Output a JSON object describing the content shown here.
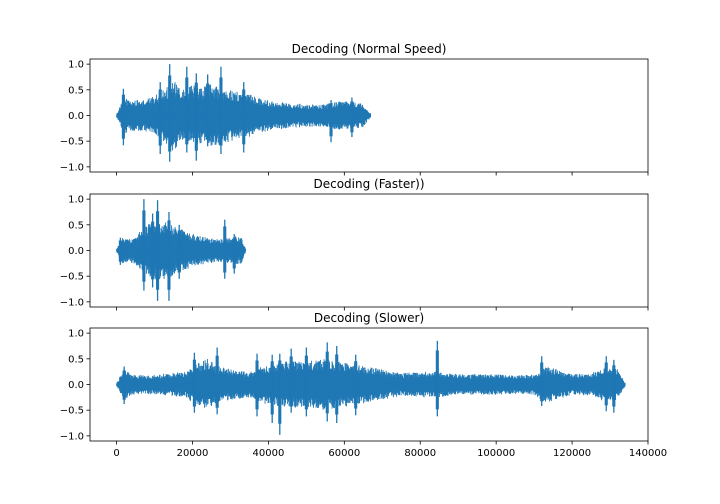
{
  "colors": {
    "series": "#1f77b4",
    "axes": "#000000",
    "background": "#ffffff"
  },
  "chart_data": [
    {
      "type": "line",
      "title": "Decoding (Normal Speed)",
      "xlabel": "",
      "ylabel": "",
      "xlim": [
        -7000,
        140000
      ],
      "ylim": [
        -1.1,
        1.1
      ],
      "x_ticks": [
        0,
        20000,
        40000,
        60000,
        80000,
        100000,
        120000,
        140000
      ],
      "x_tick_labels_visible": false,
      "y_ticks": [
        -1.0,
        -0.5,
        0.0,
        0.5,
        1.0
      ],
      "y_tick_labels": [
        "−1.0",
        "−0.5",
        "0.0",
        "0.5",
        "1.0"
      ],
      "grid": false,
      "signal_range": [
        0,
        67000
      ],
      "envelope": [
        [
          0,
          0.03
        ],
        [
          2000,
          0.35
        ],
        [
          4000,
          0.3
        ],
        [
          7000,
          0.3
        ],
        [
          10000,
          0.38
        ],
        [
          13000,
          0.55
        ],
        [
          15000,
          0.7
        ],
        [
          17000,
          0.48
        ],
        [
          20000,
          0.6
        ],
        [
          22000,
          0.55
        ],
        [
          25000,
          0.62
        ],
        [
          28000,
          0.55
        ],
        [
          30000,
          0.5
        ],
        [
          33000,
          0.45
        ],
        [
          36000,
          0.4
        ],
        [
          40000,
          0.3
        ],
        [
          45000,
          0.25
        ],
        [
          50000,
          0.22
        ],
        [
          55000,
          0.22
        ],
        [
          58000,
          0.28
        ],
        [
          62000,
          0.28
        ],
        [
          65000,
          0.22
        ],
        [
          67000,
          0.03
        ]
      ],
      "peaks": [
        {
          "x": 1800,
          "min": -0.58,
          "max": 0.52
        },
        {
          "x": 11500,
          "min": -0.75,
          "max": 0.65
        },
        {
          "x": 14000,
          "min": -0.9,
          "max": 1.0
        },
        {
          "x": 18500,
          "min": -0.72,
          "max": 0.95
        },
        {
          "x": 21000,
          "min": -0.88,
          "max": 0.82
        },
        {
          "x": 24000,
          "min": -0.6,
          "max": 0.8
        },
        {
          "x": 27500,
          "min": -0.75,
          "max": 0.95
        },
        {
          "x": 33500,
          "min": -0.72,
          "max": 0.65
        },
        {
          "x": 56500,
          "min": -0.52,
          "max": 0.3
        },
        {
          "x": 62000,
          "min": -0.42,
          "max": 0.35
        }
      ]
    },
    {
      "type": "line",
      "title": "Decoding (Faster))",
      "xlabel": "",
      "ylabel": "",
      "xlim": [
        -7000,
        140000
      ],
      "ylim": [
        -1.1,
        1.1
      ],
      "x_ticks": [
        0,
        20000,
        40000,
        60000,
        80000,
        100000,
        120000,
        140000
      ],
      "x_tick_labels_visible": false,
      "y_ticks": [
        -1.0,
        -0.5,
        0.0,
        0.5,
        1.0
      ],
      "y_tick_labels": [
        "−1.0",
        "−0.5",
        "0.0",
        "0.5",
        "1.0"
      ],
      "grid": false,
      "signal_range": [
        0,
        34000
      ],
      "envelope": [
        [
          0,
          0.03
        ],
        [
          1500,
          0.25
        ],
        [
          3000,
          0.22
        ],
        [
          5000,
          0.28
        ],
        [
          7000,
          0.45
        ],
        [
          9000,
          0.55
        ],
        [
          11000,
          0.6
        ],
        [
          13000,
          0.55
        ],
        [
          15000,
          0.5
        ],
        [
          18000,
          0.38
        ],
        [
          21000,
          0.3
        ],
        [
          24000,
          0.25
        ],
        [
          28000,
          0.22
        ],
        [
          31000,
          0.28
        ],
        [
          33000,
          0.25
        ],
        [
          34000,
          0.03
        ]
      ],
      "peaks": [
        {
          "x": 1000,
          "min": -0.28,
          "max": 0.25
        },
        {
          "x": 7200,
          "min": -0.78,
          "max": 1.0
        },
        {
          "x": 9500,
          "min": -0.72,
          "max": 0.72
        },
        {
          "x": 10800,
          "min": -0.98,
          "max": 0.98
        },
        {
          "x": 13800,
          "min": -0.98,
          "max": 0.75
        },
        {
          "x": 16500,
          "min": -0.55,
          "max": 0.5
        },
        {
          "x": 28500,
          "min": -0.55,
          "max": 0.6
        },
        {
          "x": 31000,
          "min": -0.45,
          "max": 0.32
        }
      ]
    },
    {
      "type": "line",
      "title": "Decoding (Slower)",
      "xlabel": "",
      "ylabel": "",
      "xlim": [
        -7000,
        140000
      ],
      "ylim": [
        -1.1,
        1.1
      ],
      "x_ticks": [
        0,
        20000,
        40000,
        60000,
        80000,
        100000,
        120000,
        140000
      ],
      "x_tick_labels": [
        "0",
        "20000",
        "40000",
        "60000",
        "80000",
        "100000",
        "120000",
        "140000"
      ],
      "x_tick_labels_visible": true,
      "y_ticks": [
        -1.0,
        -0.5,
        0.0,
        0.5,
        1.0
      ],
      "y_tick_labels": [
        "−1.0",
        "−0.5",
        "0.0",
        "0.5",
        "1.0"
      ],
      "grid": false,
      "signal_range": [
        0,
        134000
      ],
      "envelope": [
        [
          0,
          0.03
        ],
        [
          2000,
          0.3
        ],
        [
          4000,
          0.2
        ],
        [
          8000,
          0.18
        ],
        [
          14000,
          0.22
        ],
        [
          18000,
          0.25
        ],
        [
          21000,
          0.4
        ],
        [
          24000,
          0.5
        ],
        [
          27000,
          0.35
        ],
        [
          30000,
          0.3
        ],
        [
          35000,
          0.25
        ],
        [
          40000,
          0.4
        ],
        [
          45000,
          0.45
        ],
        [
          50000,
          0.45
        ],
        [
          55000,
          0.5
        ],
        [
          58000,
          0.45
        ],
        [
          62000,
          0.42
        ],
        [
          66000,
          0.35
        ],
        [
          70000,
          0.3
        ],
        [
          75000,
          0.22
        ],
        [
          80000,
          0.25
        ],
        [
          85000,
          0.25
        ],
        [
          90000,
          0.2
        ],
        [
          95000,
          0.2
        ],
        [
          100000,
          0.2
        ],
        [
          105000,
          0.18
        ],
        [
          110000,
          0.2
        ],
        [
          113000,
          0.35
        ],
        [
          116000,
          0.3
        ],
        [
          120000,
          0.2
        ],
        [
          125000,
          0.22
        ],
        [
          129000,
          0.35
        ],
        [
          132000,
          0.3
        ],
        [
          134000,
          0.03
        ]
      ],
      "peaks": [
        {
          "x": 2000,
          "min": -0.38,
          "max": 0.35
        },
        {
          "x": 20500,
          "min": -0.55,
          "max": 0.62
        },
        {
          "x": 26500,
          "min": -0.58,
          "max": 0.72
        },
        {
          "x": 37000,
          "min": -0.62,
          "max": 0.6
        },
        {
          "x": 41000,
          "min": -0.75,
          "max": 0.58
        },
        {
          "x": 43000,
          "min": -0.98,
          "max": 0.6
        },
        {
          "x": 46000,
          "min": -0.55,
          "max": 0.7
        },
        {
          "x": 50000,
          "min": -0.62,
          "max": 0.72
        },
        {
          "x": 55500,
          "min": -0.72,
          "max": 0.82
        },
        {
          "x": 58000,
          "min": -0.75,
          "max": 0.75
        },
        {
          "x": 63000,
          "min": -0.6,
          "max": 0.58
        },
        {
          "x": 84500,
          "min": -0.62,
          "max": 0.85
        },
        {
          "x": 112000,
          "min": -0.42,
          "max": 0.55
        },
        {
          "x": 129000,
          "min": -0.52,
          "max": 0.55
        },
        {
          "x": 131000,
          "min": -0.55,
          "max": 0.48
        }
      ]
    }
  ]
}
